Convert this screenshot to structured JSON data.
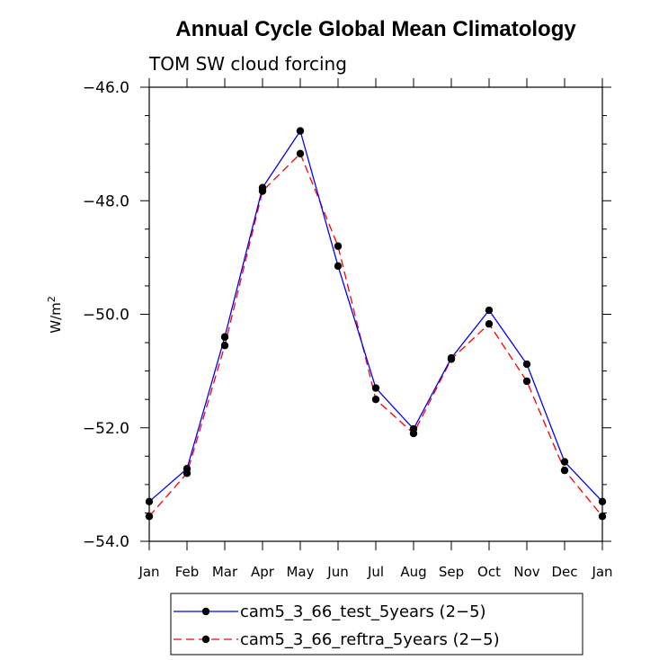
{
  "chart_data": {
    "type": "line",
    "title": "Annual Cycle Global Mean Climatology",
    "subtitle": "TOM SW cloud forcing",
    "ylabel": "W/m",
    "ylabel_superscript": "2",
    "xlabel": "",
    "categories": [
      "Jan",
      "Feb",
      "Mar",
      "Apr",
      "May",
      "Jun",
      "Jul",
      "Aug",
      "Sep",
      "Oct",
      "Nov",
      "Dec",
      "Jan"
    ],
    "ylim": [
      -54.0,
      -46.0
    ],
    "yticks": [
      -46.0,
      -48.0,
      -50.0,
      -52.0,
      -54.0
    ],
    "ytick_labels": [
      "−46.0",
      "−48.0",
      "−50.0",
      "−52.0",
      "−54.0"
    ],
    "series": [
      {
        "name": "cam5_3_66_test_5years (2−5)",
        "color": "#0000ff",
        "dash": "solid",
        "values": [
          -53.3,
          -52.72,
          -50.4,
          -47.77,
          -46.77,
          -49.15,
          -51.3,
          -52.02,
          -50.77,
          -49.93,
          -50.88,
          -52.6,
          -53.3
        ]
      },
      {
        "name": "cam5_3_66_reftra_5years (2−5)",
        "color": "#ff0000",
        "dash": "dashed",
        "values": [
          -53.56,
          -52.8,
          -50.55,
          -47.83,
          -47.17,
          -48.8,
          -51.5,
          -52.1,
          -50.79,
          -50.17,
          -51.18,
          -52.75,
          -53.56
        ]
      }
    ],
    "grid": false,
    "legend_position": "bottom-center"
  }
}
